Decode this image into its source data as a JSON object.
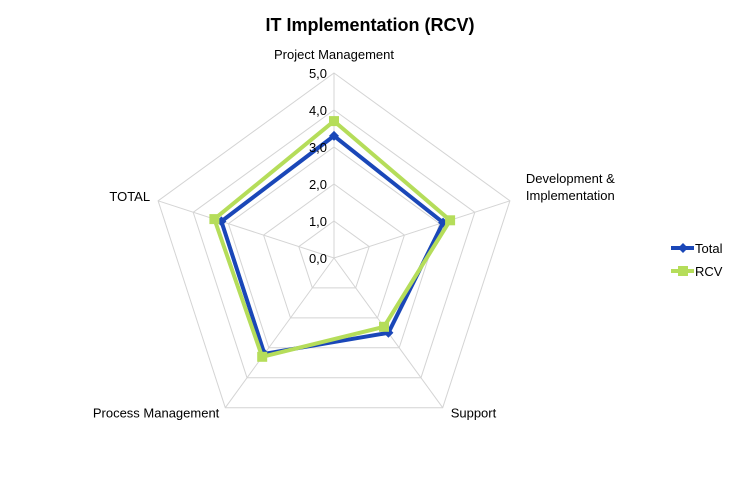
{
  "chart_data": {
    "type": "radar",
    "title": "IT Implementation (RCV)",
    "categories": [
      [
        "Project Management"
      ],
      [
        "Development &",
        "Implementation"
      ],
      [
        "Support"
      ],
      [
        "Process Management"
      ],
      [
        "TOTAL"
      ]
    ],
    "rlim": [
      0,
      5
    ],
    "ticks": [
      "0,0",
      "1,0",
      "2,0",
      "3,0",
      "4,0",
      "5,0"
    ],
    "tick_values": [
      0,
      1,
      2,
      3,
      4,
      5
    ],
    "grid": true,
    "legend_position": "right",
    "series": [
      {
        "name": "Total",
        "values": [
          3.3,
          3.1,
          2.5,
          3.2,
          3.2
        ],
        "color": "#1a47b8",
        "marker": "diamond"
      },
      {
        "name": "RCV",
        "values": [
          3.7,
          3.3,
          2.3,
          3.3,
          3.4
        ],
        "color": "#b5dd5a",
        "marker": "square"
      }
    ]
  }
}
